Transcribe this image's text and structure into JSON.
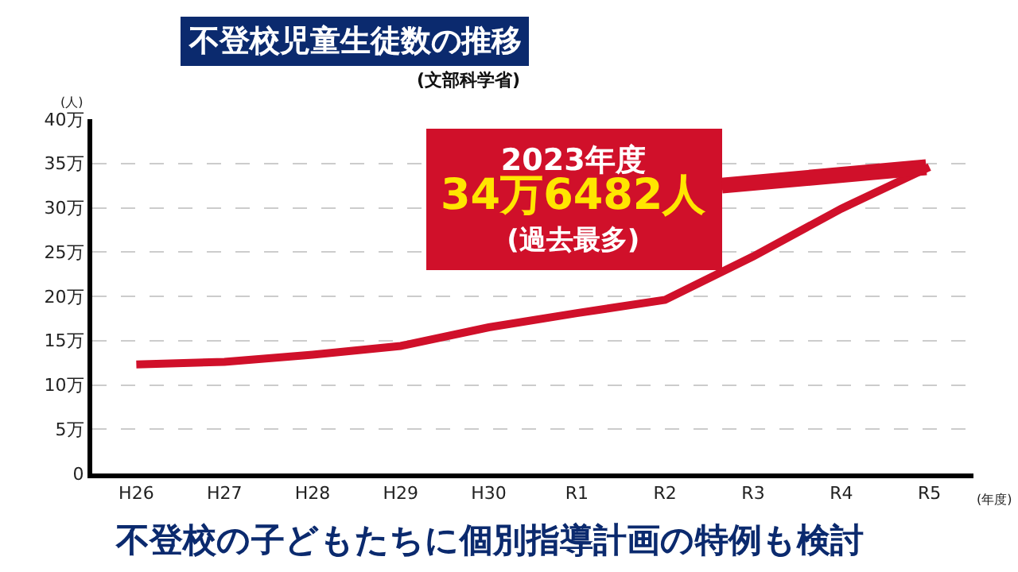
{
  "chart_data": {
    "type": "line",
    "title": "不登校児童生徒数の推移",
    "xlabel": "(年度)",
    "ylabel": "(人)",
    "categories": [
      "H26",
      "H27",
      "H28",
      "H29",
      "H30",
      "R1",
      "R2",
      "R3",
      "R4",
      "R5"
    ],
    "series": [
      {
        "color": "#d0102a",
        "values": [
          12.3,
          12.6,
          13.4,
          14.4,
          16.5,
          18.1,
          19.6,
          24.5,
          29.9,
          34.6
        ]
      }
    ],
    "ylim": [
      0,
      40
    ],
    "yticks": [
      0,
      {
        "value": 5,
        "label": "5万"
      },
      {
        "value": 10,
        "label": "10万"
      },
      {
        "value": 15,
        "label": "15万"
      },
      {
        "value": 20,
        "label": "20万"
      },
      {
        "value": 25,
        "label": "25万"
      },
      {
        "value": 30,
        "label": "30万"
      },
      {
        "value": 35,
        "label": "35万"
      },
      {
        "value": 40,
        "label": "40万"
      }
    ],
    "grid": "y",
    "marker": "none",
    "line_style": "solid",
    "annotations": [
      "(文部科学省)",
      "不登校の子どもたちに個別指導計画の特例も検討",
      {
        "text": "2023年度\n34万6482人\n(過去最多)",
        "x": "R5",
        "y": 34.6
      }
    ]
  }
}
